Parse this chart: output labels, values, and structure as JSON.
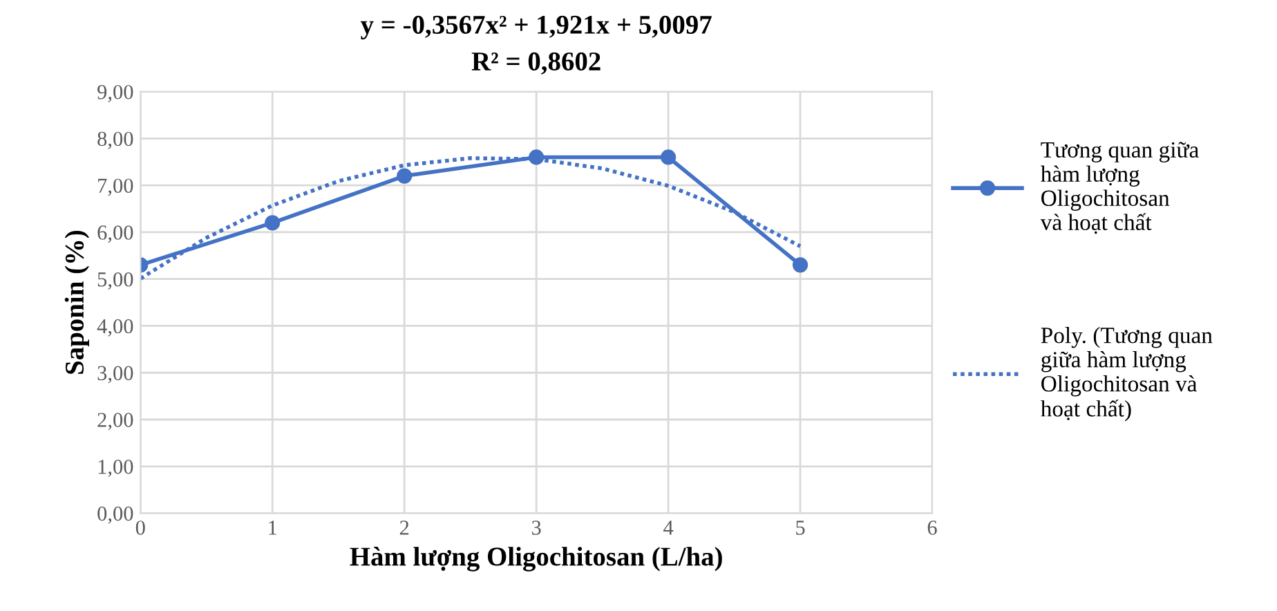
{
  "chart_data": {
    "type": "line",
    "title": "y = -0,3567x² + 1,921x + 5,0097",
    "subtitle": "R² = 0,8602",
    "xlabel": "Hàm lượng Oligochitosan (L/ha)",
    "ylabel": "Saponin (%)",
    "x": [
      0,
      1,
      2,
      3,
      4,
      5
    ],
    "series": [
      {
        "name": "Tương quan giữa\nhàm lượng\nOligochitosan\nvà hoạt chất",
        "color": "#4472c4",
        "values": [
          5.3,
          6.2,
          7.2,
          7.6,
          7.6,
          5.3
        ],
        "marker": "circle",
        "line_style": "solid"
      },
      {
        "name": "Poly. (Tương quan\ngiữa hàm lượng\nOligochitosan và\nhoạt chất)",
        "color": "#4472c4",
        "type": "line",
        "x": [
          0,
          0.5,
          1,
          1.5,
          2,
          2.5,
          3,
          3.5,
          4,
          4.5,
          5
        ],
        "values": [
          5.01,
          5.88,
          6.57,
          7.09,
          7.43,
          7.58,
          7.56,
          7.36,
          6.99,
          6.43,
          5.7
        ],
        "marker": "none",
        "line_style": "dotted"
      }
    ],
    "xlim": [
      0,
      6
    ],
    "xticks": [
      0,
      1,
      2,
      3,
      4,
      5,
      6
    ],
    "ylim": [
      0,
      9
    ],
    "yticks": [
      {
        "value": 0,
        "label": "0,00"
      },
      {
        "value": 1,
        "label": "1,00"
      },
      {
        "value": 2,
        "label": "2,00"
      },
      {
        "value": 3,
        "label": "3,00"
      },
      {
        "value": 4,
        "label": "4,00"
      },
      {
        "value": 5,
        "label": "5,00"
      },
      {
        "value": 6,
        "label": "6,00"
      },
      {
        "value": 7,
        "label": "7,00"
      },
      {
        "value": 8,
        "label": "8,00"
      },
      {
        "value": 9,
        "label": "9,00"
      }
    ],
    "grid": true,
    "legend": "right"
  }
}
